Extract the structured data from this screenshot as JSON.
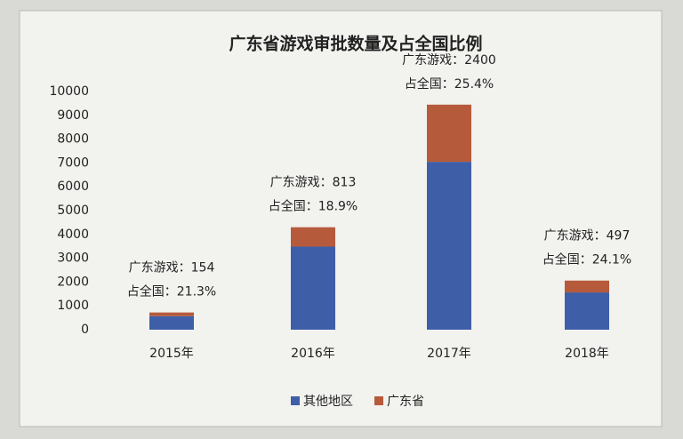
{
  "chart_data": {
    "type": "stacked_bar",
    "title": "广东省游戏审批数量及占全国比例",
    "categories": [
      "2015年",
      "2016年",
      "2017年",
      "2018年"
    ],
    "series": [
      {
        "name": "其他地区",
        "color": "#3f5ea8",
        "values": [
          569,
          3489,
          7049,
          1565
        ]
      },
      {
        "name": "广东省",
        "color": "#b65a3c",
        "values": [
          154,
          813,
          2400,
          497
        ],
        "value_labels": [
          "广东游戏：154",
          "广东游戏：813",
          "广东游戏：2400",
          "广东游戏：497"
        ]
      }
    ],
    "annotations": [
      "占全国：21.3%",
      "占全国：18.9%",
      "占全国：25.4%",
      "占全国：24.1%"
    ],
    "ylim": [
      0,
      10000
    ],
    "yticks": [
      0,
      1000,
      2000,
      3000,
      4000,
      5000,
      6000,
      7000,
      8000,
      9000,
      10000
    ],
    "legend": "bottom"
  }
}
